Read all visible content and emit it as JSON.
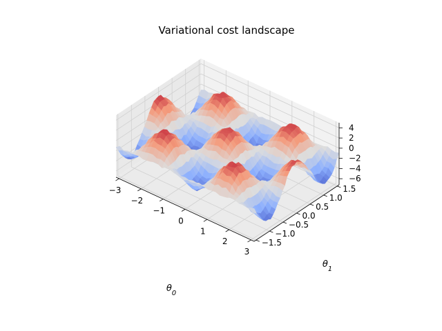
{
  "chart_data": {
    "type": "surface",
    "title": "Variational cost landscape",
    "xlabel": "θ0",
    "ylabel": "θ1",
    "zlabel": "",
    "xlim": [
      -3.14,
      3.14
    ],
    "ylim": [
      -1.57,
      1.57
    ],
    "zlim": [
      -7.2,
      5.0
    ],
    "x_ticks": [
      3,
      2,
      1,
      0,
      -1,
      -2,
      -3
    ],
    "x_tick_labels": [
      "3",
      "2",
      "1",
      "0",
      "−1",
      "−2",
      "−3"
    ],
    "y_ticks": [
      -1.5,
      -1.0,
      -0.5,
      0.0,
      0.5,
      1.0,
      1.5
    ],
    "y_tick_labels": [
      "−1.5",
      "−1.0",
      "−0.5",
      "0.0",
      "0.5",
      "1.0",
      "1.5"
    ],
    "z_ticks": [
      -6,
      -4,
      -2,
      0,
      2,
      4
    ],
    "z_tick_labels": [
      "−6",
      "−4",
      "−2",
      "0",
      "2",
      "4"
    ],
    "colormap": "coolwarm",
    "colormap_stops": [
      "#3b4cc0",
      "#8db0fe",
      "#dddddd",
      "#f49a7b",
      "#b40426"
    ],
    "surface_function": "z = 4*cos(2*θ0)*cos(3*θ1) - 1 + noise",
    "grid": true,
    "legend": false
  }
}
